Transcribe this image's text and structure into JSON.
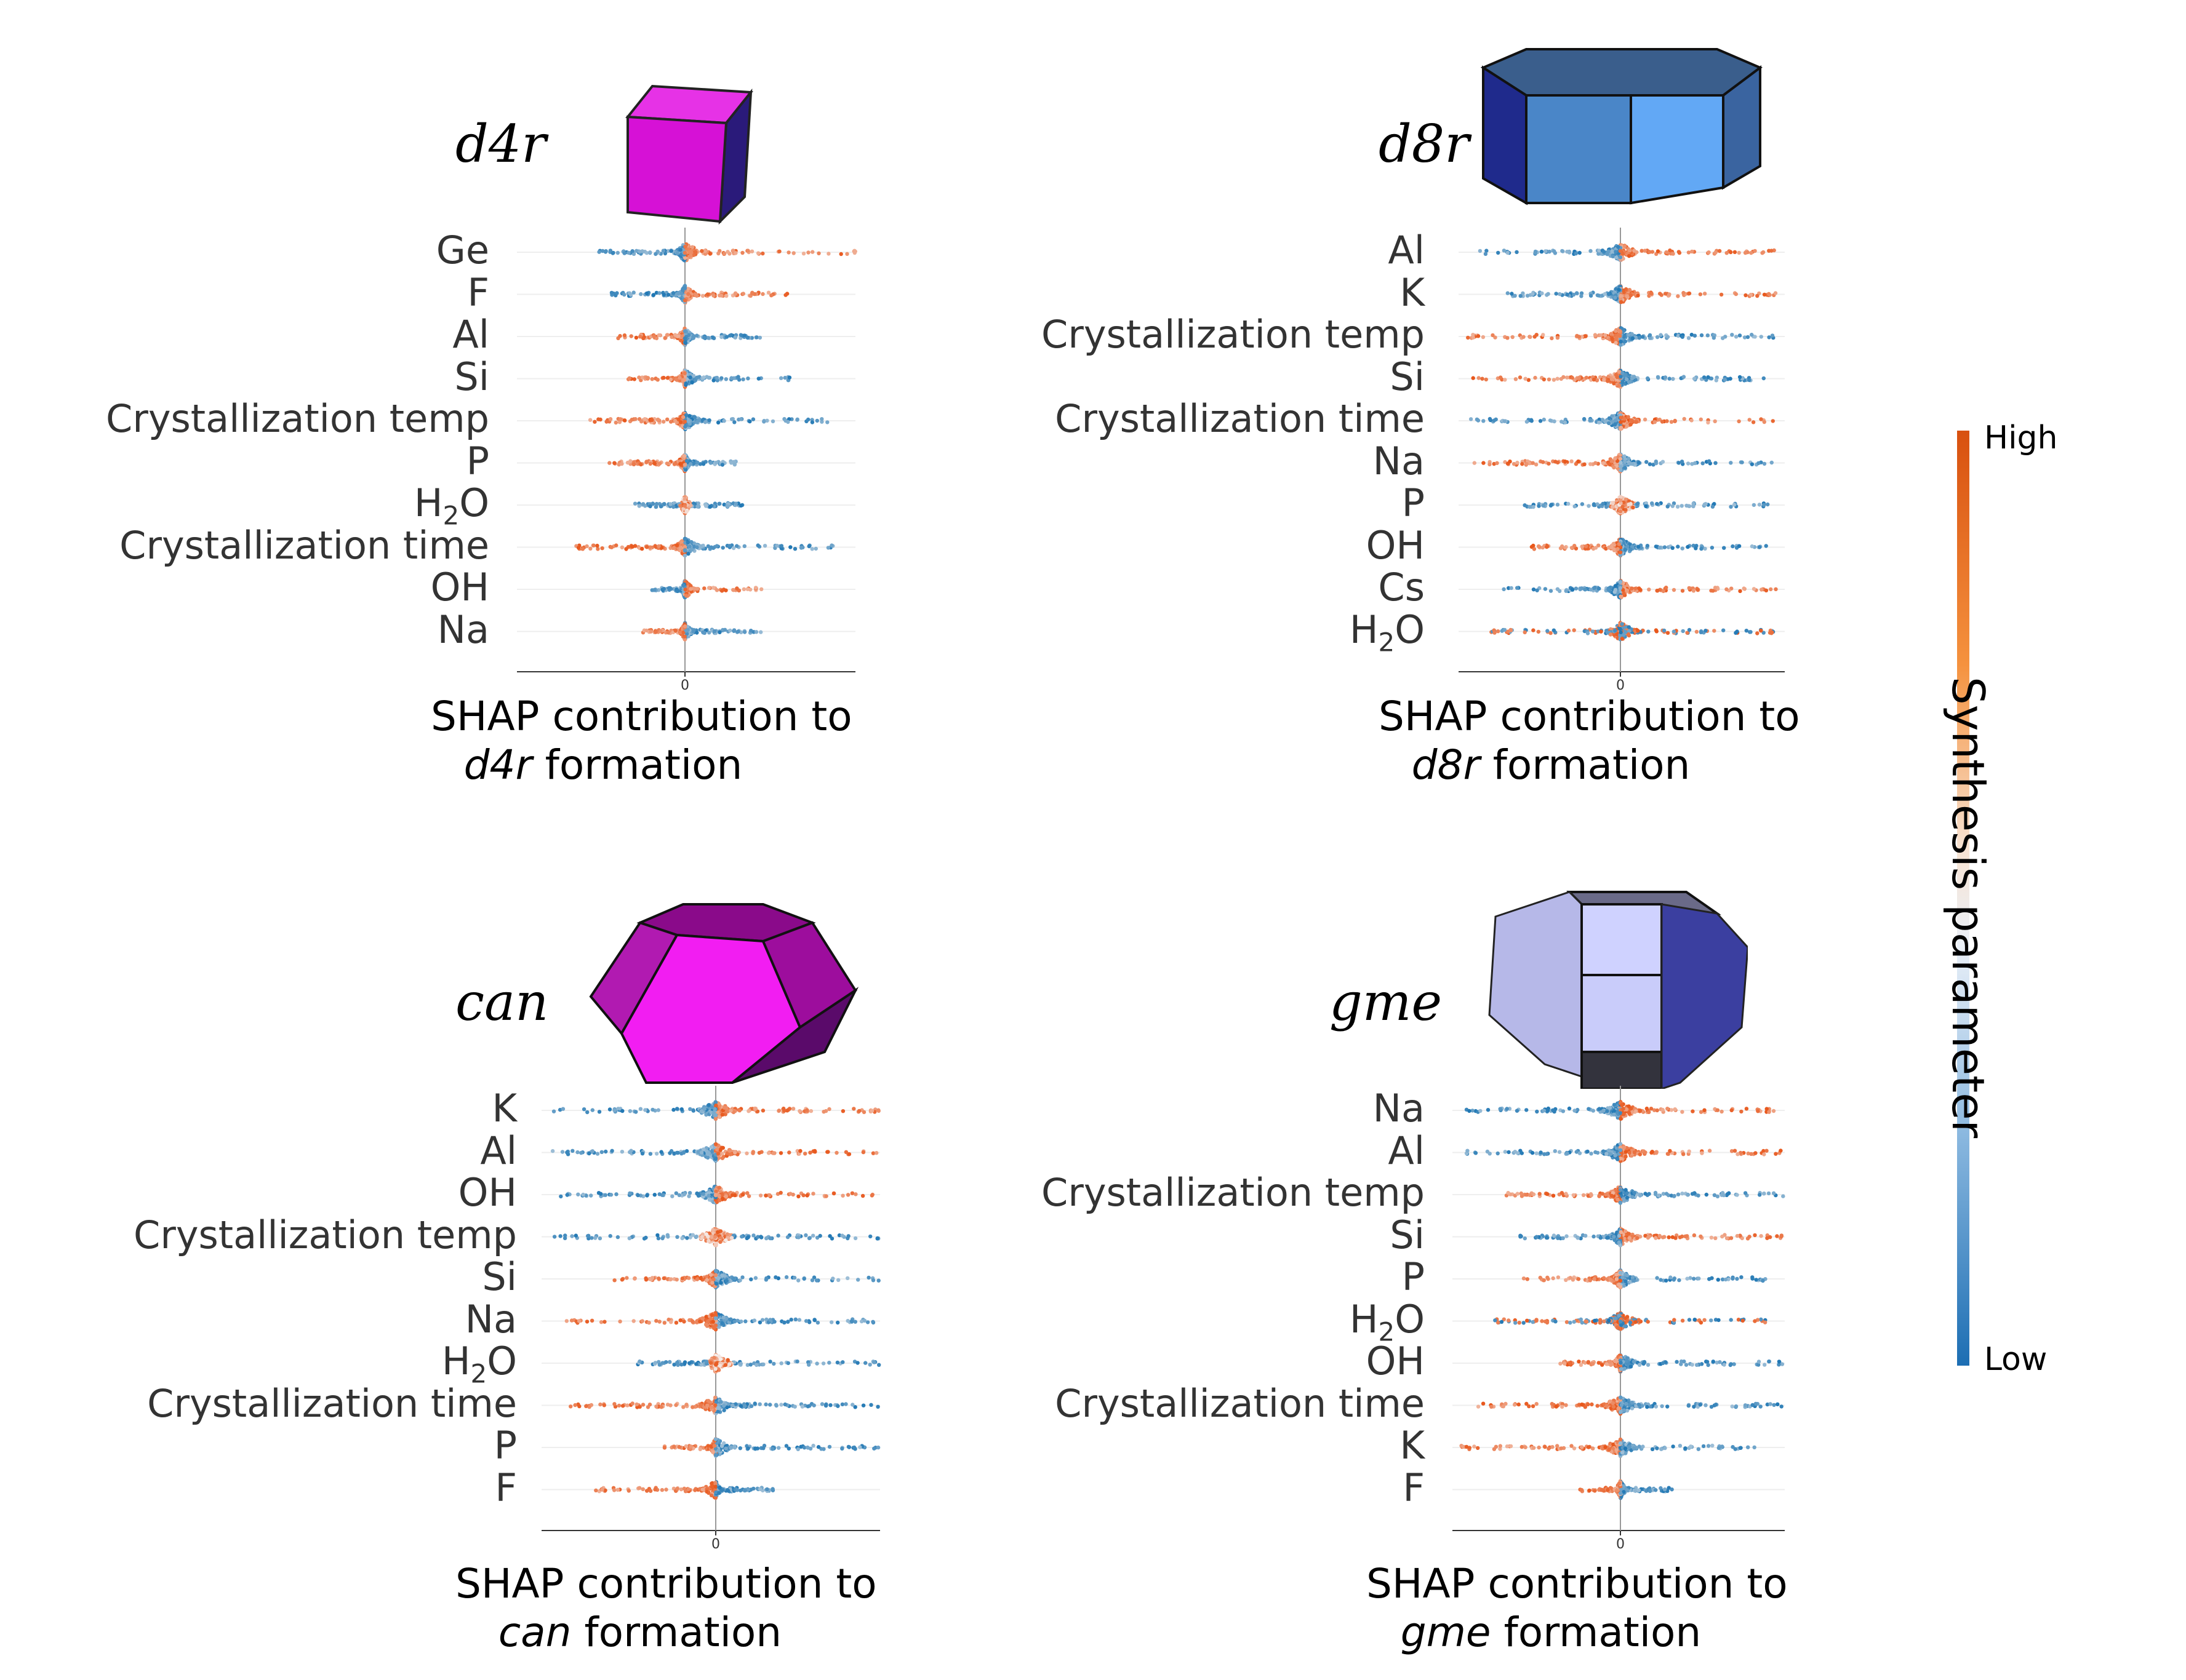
{
  "colors": {
    "low": "#1f77b4",
    "mid": "#f5f0ef",
    "high": "#e8561a"
  },
  "colorbar": {
    "high_label": "High",
    "low_label": "Low",
    "title": "Synthesis parameter"
  },
  "chart_data": [
    {
      "type": "scatter",
      "subtype": "shap-beeswarm",
      "title": "d4r",
      "shape_icon": "cube-icon",
      "x_tick_label": "0",
      "xlabel_line1": "SHAP contribution to",
      "xlabel_italic": "d4r",
      "xlabel_suffix": "formation",
      "features": [
        "Ge",
        "F",
        "Al",
        "Si",
        "Crystallization temp",
        "P",
        "H2O",
        "Crystallization time",
        "OH",
        "Na"
      ],
      "spread": [
        {
          "left": 0.55,
          "right": 1.0,
          "high_side": "right"
        },
        {
          "left": 0.45,
          "right": 0.6,
          "high_side": "right"
        },
        {
          "left": 0.4,
          "right": 0.45,
          "high_side": "left"
        },
        {
          "left": 0.35,
          "right": 0.65,
          "high_side": "left"
        },
        {
          "left": 0.6,
          "right": 0.9,
          "high_side": "left"
        },
        {
          "left": 0.45,
          "right": 0.3,
          "high_side": "left"
        },
        {
          "left": 0.3,
          "right": 0.35,
          "high_side": "center"
        },
        {
          "left": 0.65,
          "right": 0.9,
          "high_side": "left"
        },
        {
          "left": 0.2,
          "right": 0.5,
          "high_side": "right"
        },
        {
          "left": 0.25,
          "right": 0.45,
          "high_side": "left"
        }
      ]
    },
    {
      "type": "scatter",
      "subtype": "shap-beeswarm",
      "title": "d8r",
      "shape_icon": "octagonal-prism-icon",
      "x_tick_label": "0",
      "xlabel_line1": "SHAP contribution to",
      "xlabel_italic": "d8r",
      "xlabel_suffix": "formation",
      "features": [
        "Al",
        "K",
        "Crystallization temp",
        "Si",
        "Crystallization time",
        "Na",
        "P",
        "OH",
        "Cs",
        "H2O"
      ],
      "spread": [
        {
          "left": 0.9,
          "right": 0.95,
          "high_side": "right"
        },
        {
          "left": 0.7,
          "right": 1.0,
          "high_side": "right"
        },
        {
          "left": 0.95,
          "right": 0.95,
          "high_side": "left"
        },
        {
          "left": 0.95,
          "right": 0.9,
          "high_side": "left"
        },
        {
          "left": 0.95,
          "right": 0.95,
          "high_side": "right"
        },
        {
          "left": 0.95,
          "right": 0.95,
          "high_side": "left"
        },
        {
          "left": 0.6,
          "right": 0.9,
          "high_side": "center"
        },
        {
          "left": 0.6,
          "right": 0.95,
          "high_side": "left"
        },
        {
          "left": 0.75,
          "right": 0.95,
          "high_side": "right"
        },
        {
          "left": 0.8,
          "right": 0.95,
          "high_side": "both"
        }
      ]
    },
    {
      "type": "scatter",
      "subtype": "shap-beeswarm",
      "title": "can",
      "shape_icon": "hexagonal-prism-icon",
      "x_tick_label": "0",
      "xlabel_line1": "SHAP contribution to",
      "xlabel_italic": "can",
      "xlabel_suffix": "formation",
      "features": [
        "K",
        "Al",
        "OH",
        "Crystallization temp",
        "Si",
        "Na",
        "H2O",
        "Crystallization time",
        "P",
        "F"
      ],
      "spread": [
        {
          "left": 0.95,
          "right": 1.0,
          "high_side": "right"
        },
        {
          "left": 0.95,
          "right": 1.0,
          "high_side": "right"
        },
        {
          "left": 0.9,
          "right": 1.0,
          "high_side": "right"
        },
        {
          "left": 0.95,
          "right": 1.0,
          "high_side": "center"
        },
        {
          "left": 0.6,
          "right": 1.0,
          "high_side": "left"
        },
        {
          "left": 0.95,
          "right": 1.0,
          "high_side": "left"
        },
        {
          "left": 0.45,
          "right": 1.0,
          "high_side": "center"
        },
        {
          "left": 0.9,
          "right": 1.0,
          "high_side": "left"
        },
        {
          "left": 0.3,
          "right": 1.0,
          "high_side": "left"
        },
        {
          "left": 0.7,
          "right": 0.35,
          "high_side": "left"
        }
      ]
    },
    {
      "type": "scatter",
      "subtype": "shap-beeswarm",
      "title": "gme",
      "shape_icon": "gme-cage-icon",
      "x_tick_label": "0",
      "xlabel_line1": "SHAP contribution to",
      "xlabel_italic": "gme",
      "xlabel_suffix": "formation",
      "features": [
        "Na",
        "Al",
        "Crystallization temp",
        "Si",
        "P",
        "H2O",
        "OH",
        "Crystallization time",
        "K",
        "F"
      ],
      "spread": [
        {
          "left": 0.95,
          "right": 1.0,
          "high_side": "right"
        },
        {
          "left": 0.95,
          "right": 1.0,
          "high_side": "right"
        },
        {
          "left": 0.7,
          "right": 1.0,
          "high_side": "left"
        },
        {
          "left": 0.6,
          "right": 1.0,
          "high_side": "right"
        },
        {
          "left": 0.6,
          "right": 0.9,
          "high_side": "left"
        },
        {
          "left": 0.75,
          "right": 0.95,
          "high_side": "both"
        },
        {
          "left": 0.4,
          "right": 1.0,
          "high_side": "left"
        },
        {
          "left": 0.95,
          "right": 1.0,
          "high_side": "left"
        },
        {
          "left": 0.95,
          "right": 0.85,
          "high_side": "left"
        },
        {
          "left": 0.25,
          "right": 0.35,
          "high_side": "left"
        }
      ]
    }
  ]
}
